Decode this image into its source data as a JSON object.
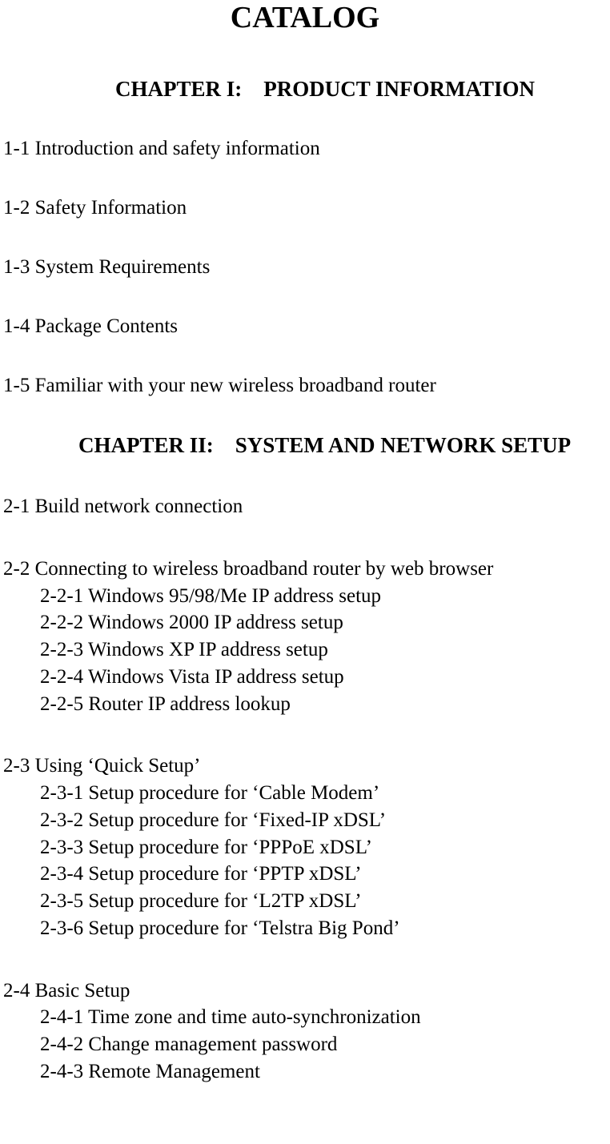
{
  "title": "CATALOG",
  "chapters": {
    "chapter1": {
      "title": "CHAPTER I:    PRODUCT INFORMATION",
      "sections": [
        "1-1 Introduction and safety information",
        "1-2 Safety Information",
        "1-3 System Requirements",
        "1-4 Package Contents",
        "1-5 Familiar with your new wireless broadband router"
      ]
    },
    "chapter2": {
      "title": "CHAPTER II:    SYSTEM AND NETWORK SETUP",
      "groups": [
        {
          "heading": "2-1 Build network connection",
          "subs": []
        },
        {
          "heading": "2-2 Connecting to wireless broadband router by web browser",
          "subs": [
            "2-2-1 Windows 95/98/Me IP address setup",
            "2-2-2 Windows 2000 IP address setup",
            "2-2-3 Windows XP IP address setup",
            "2-2-4 Windows Vista IP address setup",
            "2-2-5 Router IP address lookup"
          ]
        },
        {
          "heading": "2-3 Using ‘Quick Setup’",
          "subs": [
            "2-3-1 Setup procedure for ‘Cable Modem’",
            "2-3-2 Setup procedure for ‘Fixed-IP xDSL’",
            "2-3-3 Setup procedure for ‘PPPoE xDSL’",
            "2-3-4 Setup procedure for ‘PPTP xDSL’",
            "2-3-5 Setup procedure for ‘L2TP xDSL’",
            "2-3-6 Setup procedure for ‘Telstra Big Pond’"
          ]
        },
        {
          "heading": "2-4 Basic Setup",
          "subs": [
            "2-4-1 Time zone and time auto-synchronization",
            "2-4-2 Change management password",
            "2-4-3 Remote Management"
          ]
        }
      ]
    }
  }
}
